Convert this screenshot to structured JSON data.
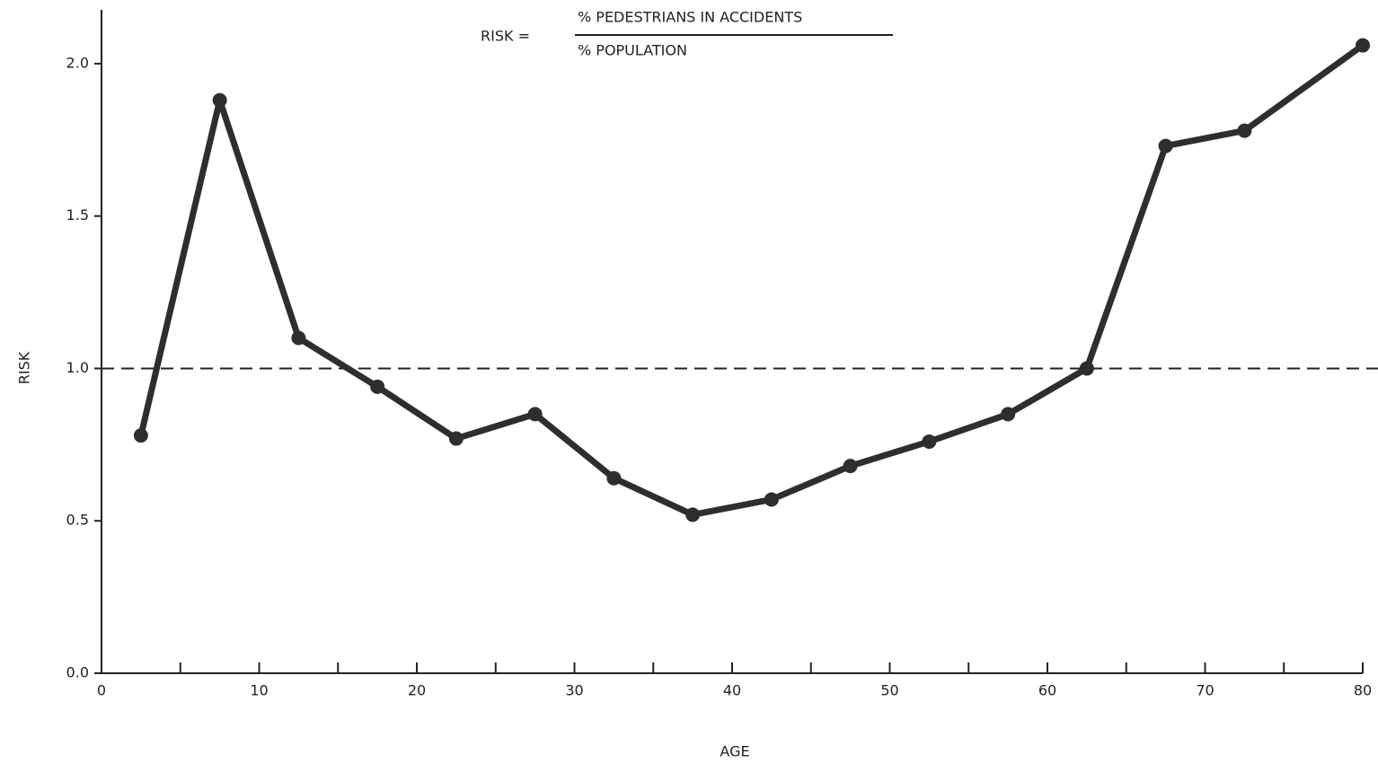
{
  "chart_data": {
    "type": "line",
    "title": {
      "lhs": "RISK =",
      "numerator": "% PEDESTRIANS IN ACCIDENTS",
      "denominator": "% POPULATION"
    },
    "x_label": "AGE",
    "y_label": "RISK",
    "x": [
      2.5,
      7.5,
      12.5,
      17.5,
      22.5,
      27.5,
      32.5,
      37.5,
      42.5,
      47.5,
      52.5,
      57.5,
      62.5,
      67.5,
      72.5,
      80
    ],
    "series": [
      {
        "name": "RISK",
        "color": "#2e2e2e",
        "values": [
          0.78,
          1.88,
          1.1,
          0.94,
          0.77,
          0.85,
          0.64,
          0.52,
          0.57,
          0.68,
          0.76,
          0.85,
          1.0,
          1.73,
          1.78,
          2.06
        ]
      }
    ],
    "xlim": [
      0,
      80
    ],
    "xticks": [
      0,
      10,
      20,
      30,
      40,
      50,
      60,
      70,
      80
    ],
    "ylim": [
      0,
      2.2
    ],
    "yticks": [
      {
        "value": 0,
        "label": "0.0"
      },
      0.5,
      {
        "value": 1,
        "label": "1.0"
      },
      1.5,
      {
        "value": 2,
        "label": "2.0"
      }
    ],
    "reference_line": 1.0
  }
}
